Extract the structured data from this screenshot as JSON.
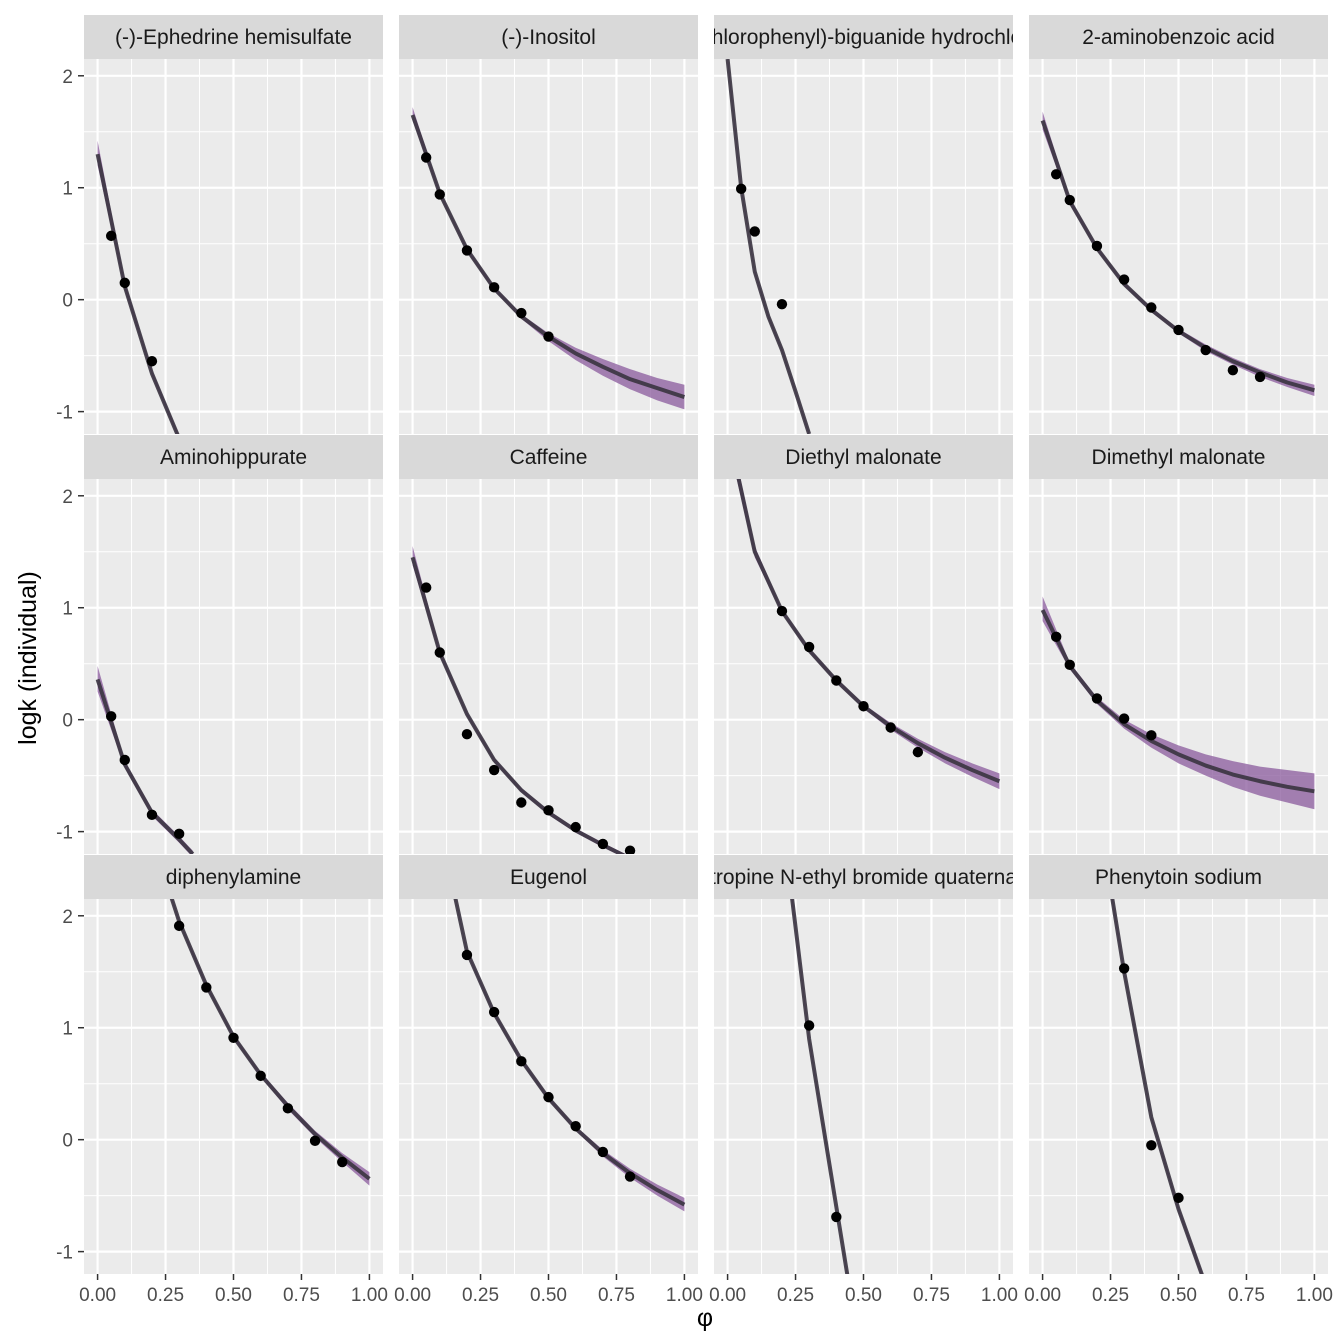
{
  "chart_data": {
    "type": "line",
    "xlabel": "φ",
    "ylabel": "logk (individual)",
    "xlim": [
      -0.05,
      1.05
    ],
    "ylim": [
      -1.2,
      2.15
    ],
    "x_ticks": [
      0.0,
      0.25,
      0.5,
      0.75,
      1.0
    ],
    "x_tick_labels": [
      "0.00",
      "0.25",
      "0.50",
      "0.75",
      "1.00"
    ],
    "y_ticks": [
      -1,
      0,
      1,
      2
    ],
    "y_tick_labels": [
      "-1",
      "0",
      "1",
      "2"
    ],
    "grid": true,
    "layout": {
      "rows": 3,
      "cols": 4
    },
    "colors": {
      "panel_bg": "#ebebeb",
      "grid": "#ffffff",
      "strip_bg": "#d9d9d9",
      "band": "#8a5a9c",
      "line": "#3a3440",
      "points": "#000000"
    },
    "panels": [
      {
        "title": "(-)-Ephedrine hemisulfate",
        "curve": {
          "x": [
            0,
            0.1,
            0.2,
            0.3
          ],
          "y": [
            1.3,
            0.12,
            -0.66,
            -1.24
          ]
        },
        "band": {
          "x": [
            0,
            0.1,
            0.2,
            0.3
          ],
          "lower": [
            1.2,
            0.09,
            -0.68,
            -1.26
          ],
          "upper": [
            1.42,
            0.16,
            -0.63,
            -1.21
          ]
        },
        "points": {
          "x": [
            0.05,
            0.1,
            0.2
          ],
          "y": [
            0.57,
            0.15,
            -0.55
          ]
        }
      },
      {
        "title": "(-)-Inositol",
        "curve": {
          "x": [
            0,
            0.1,
            0.2,
            0.3,
            0.4,
            0.5,
            0.6,
            0.7,
            0.8,
            0.9,
            1.0
          ],
          "y": [
            1.65,
            0.95,
            0.45,
            0.1,
            -0.15,
            -0.33,
            -0.48,
            -0.6,
            -0.71,
            -0.79,
            -0.87
          ]
        },
        "band": {
          "x": [
            0,
            0.1,
            0.2,
            0.3,
            0.4,
            0.5,
            0.6,
            0.7,
            0.8,
            0.9,
            1.0
          ],
          "lower": [
            1.6,
            0.93,
            0.43,
            0.08,
            -0.17,
            -0.37,
            -0.54,
            -0.68,
            -0.8,
            -0.9,
            -0.98
          ],
          "upper": [
            1.72,
            0.97,
            0.47,
            0.12,
            -0.13,
            -0.3,
            -0.43,
            -0.53,
            -0.62,
            -0.7,
            -0.76
          ]
        },
        "points": {
          "x": [
            0.05,
            0.1,
            0.2,
            0.3,
            0.4,
            0.5
          ],
          "y": [
            1.27,
            0.94,
            0.44,
            0.11,
            -0.12,
            -0.33
          ]
        }
      },
      {
        "title": "(m-chlorophenyl)-biguanide hydrochloride",
        "curve": {
          "x": [
            0.0,
            0.05,
            0.1,
            0.15,
            0.2,
            0.25,
            0.3
          ],
          "y": [
            2.15,
            1.0,
            0.25,
            -0.15,
            -0.45,
            -0.82,
            -1.2
          ]
        },
        "band": {
          "x": [
            0.0,
            0.05,
            0.1,
            0.15,
            0.2,
            0.25,
            0.3
          ],
          "lower": [
            2.1,
            0.98,
            0.23,
            -0.17,
            -0.47,
            -0.84,
            -1.22
          ],
          "upper": [
            2.2,
            1.02,
            0.27,
            -0.13,
            -0.43,
            -0.8,
            -1.18
          ]
        },
        "points": {
          "x": [
            0.05,
            0.1,
            0.2
          ],
          "y": [
            0.99,
            0.61,
            -0.04
          ]
        }
      },
      {
        "title": "2-aminobenzoic acid",
        "curve": {
          "x": [
            0,
            0.1,
            0.2,
            0.3,
            0.4,
            0.5,
            0.6,
            0.7,
            0.8,
            0.9,
            1.0
          ],
          "y": [
            1.6,
            0.88,
            0.46,
            0.14,
            -0.09,
            -0.28,
            -0.43,
            -0.55,
            -0.65,
            -0.74,
            -0.81
          ]
        },
        "band": {
          "x": [
            0,
            0.1,
            0.2,
            0.3,
            0.4,
            0.5,
            0.6,
            0.7,
            0.8,
            0.9,
            1.0
          ],
          "lower": [
            1.52,
            0.85,
            0.44,
            0.12,
            -0.11,
            -0.3,
            -0.46,
            -0.58,
            -0.69,
            -0.78,
            -0.86
          ],
          "upper": [
            1.68,
            0.91,
            0.48,
            0.16,
            -0.07,
            -0.26,
            -0.4,
            -0.52,
            -0.62,
            -0.7,
            -0.76
          ]
        },
        "points": {
          "x": [
            0.05,
            0.1,
            0.2,
            0.3,
            0.4,
            0.5,
            0.6,
            0.7,
            0.8
          ],
          "y": [
            1.12,
            0.89,
            0.48,
            0.18,
            -0.07,
            -0.27,
            -0.45,
            -0.63,
            -0.69
          ]
        }
      },
      {
        "title": "Aminohippurate",
        "curve": {
          "x": [
            0,
            0.1,
            0.2,
            0.3,
            0.35
          ],
          "y": [
            0.36,
            -0.4,
            -0.83,
            -1.07,
            -1.2
          ]
        },
        "band": {
          "x": [
            0,
            0.1,
            0.2,
            0.3,
            0.35
          ],
          "lower": [
            0.25,
            -0.43,
            -0.86,
            -1.1,
            -1.23
          ],
          "upper": [
            0.48,
            -0.37,
            -0.8,
            -1.04,
            -1.17
          ]
        },
        "points": {
          "x": [
            0.05,
            0.1,
            0.2,
            0.3
          ],
          "y": [
            0.03,
            -0.36,
            -0.85,
            -1.02
          ]
        }
      },
      {
        "title": "Caffeine",
        "curve": {
          "x": [
            0,
            0.1,
            0.2,
            0.3,
            0.4,
            0.5,
            0.6,
            0.7,
            0.8
          ],
          "y": [
            1.45,
            0.6,
            0.05,
            -0.36,
            -0.63,
            -0.83,
            -0.99,
            -1.12,
            -1.24
          ]
        },
        "band": {
          "x": [
            0,
            0.1,
            0.2,
            0.3,
            0.4,
            0.5,
            0.6,
            0.7,
            0.8
          ],
          "lower": [
            1.38,
            0.57,
            0.03,
            -0.38,
            -0.65,
            -0.85,
            -1.01,
            -1.14,
            -1.26
          ],
          "upper": [
            1.55,
            0.63,
            0.07,
            -0.34,
            -0.61,
            -0.81,
            -0.97,
            -1.1,
            -1.22
          ]
        },
        "points": {
          "x": [
            0.05,
            0.1,
            0.2,
            0.3,
            0.4,
            0.5,
            0.6,
            0.7,
            0.8
          ],
          "y": [
            1.18,
            0.6,
            -0.13,
            -0.45,
            -0.74,
            -0.81,
            -0.96,
            -1.11,
            -1.17
          ]
        }
      },
      {
        "title": "Diethyl malonate",
        "curve": {
          "x": [
            0.0,
            0.1,
            0.2,
            0.3,
            0.4,
            0.5,
            0.6,
            0.7,
            0.8,
            0.9,
            1.0
          ],
          "y": [
            2.6,
            1.5,
            0.97,
            0.62,
            0.35,
            0.12,
            -0.06,
            -0.21,
            -0.34,
            -0.45,
            -0.55
          ]
        },
        "band": {
          "x": [
            0.0,
            0.1,
            0.2,
            0.3,
            0.4,
            0.5,
            0.6,
            0.7,
            0.8,
            0.9,
            1.0
          ],
          "lower": [
            2.5,
            1.45,
            0.95,
            0.6,
            0.33,
            0.1,
            -0.09,
            -0.25,
            -0.39,
            -0.51,
            -0.62
          ],
          "upper": [
            2.7,
            1.55,
            0.99,
            0.64,
            0.37,
            0.14,
            -0.03,
            -0.17,
            -0.29,
            -0.39,
            -0.48
          ]
        },
        "points": {
          "x": [
            0.2,
            0.3,
            0.4,
            0.5,
            0.6,
            0.7
          ],
          "y": [
            0.97,
            0.65,
            0.35,
            0.12,
            -0.07,
            -0.29
          ]
        }
      },
      {
        "title": "Dimethyl malonate",
        "curve": {
          "x": [
            0,
            0.1,
            0.2,
            0.3,
            0.4,
            0.5,
            0.6,
            0.7,
            0.8,
            0.9,
            1.0
          ],
          "y": [
            0.98,
            0.48,
            0.17,
            -0.04,
            -0.19,
            -0.31,
            -0.41,
            -0.49,
            -0.55,
            -0.6,
            -0.64
          ]
        },
        "band": {
          "x": [
            0,
            0.1,
            0.2,
            0.3,
            0.4,
            0.5,
            0.6,
            0.7,
            0.8,
            0.9,
            1.0
          ],
          "lower": [
            0.88,
            0.45,
            0.14,
            -0.08,
            -0.25,
            -0.39,
            -0.5,
            -0.6,
            -0.68,
            -0.74,
            -0.8
          ],
          "upper": [
            1.1,
            0.51,
            0.2,
            0.0,
            -0.13,
            -0.23,
            -0.31,
            -0.37,
            -0.42,
            -0.45,
            -0.48
          ]
        },
        "points": {
          "x": [
            0.05,
            0.1,
            0.2,
            0.3,
            0.4
          ],
          "y": [
            0.74,
            0.49,
            0.19,
            0.01,
            -0.14
          ]
        }
      },
      {
        "title": "diphenylamine",
        "curve": {
          "x": [
            0.2,
            0.3,
            0.4,
            0.5,
            0.6,
            0.7,
            0.8,
            0.9,
            1.0
          ],
          "y": [
            2.7,
            1.95,
            1.38,
            0.92,
            0.58,
            0.3,
            0.05,
            -0.16,
            -0.35
          ]
        },
        "band": {
          "x": [
            0.2,
            0.3,
            0.4,
            0.5,
            0.6,
            0.7,
            0.8,
            0.9,
            1.0
          ],
          "lower": [
            2.68,
            1.93,
            1.36,
            0.9,
            0.56,
            0.27,
            0.02,
            -0.2,
            -0.41
          ]
        },
        "points": {
          "x": [
            0.3,
            0.4,
            0.5,
            0.6,
            0.7,
            0.8,
            0.9
          ],
          "y": [
            1.91,
            1.36,
            0.91,
            0.57,
            0.28,
            -0.01,
            -0.2
          ]
        }
      },
      {
        "title": "Eugenol",
        "curve": {
          "x": [
            0.1,
            0.2,
            0.3,
            0.4,
            0.5,
            0.6,
            0.7,
            0.8,
            0.9,
            1.0
          ],
          "y": [
            2.8,
            1.68,
            1.13,
            0.71,
            0.37,
            0.1,
            -0.12,
            -0.3,
            -0.45,
            -0.58
          ]
        },
        "band": {
          "x": [
            0.1,
            0.2,
            0.3,
            0.4,
            0.5,
            0.6,
            0.7,
            0.8,
            0.9,
            1.0
          ],
          "lower": [
            2.78,
            1.66,
            1.11,
            0.69,
            0.35,
            0.08,
            -0.15,
            -0.34,
            -0.5,
            -0.64
          ],
          "upper": [
            2.82,
            1.7,
            1.15,
            0.73,
            0.39,
            0.12,
            -0.09,
            -0.26,
            -0.4,
            -0.52
          ]
        },
        "points": {
          "x": [
            0.2,
            0.3,
            0.4,
            0.5,
            0.6,
            0.7,
            0.8
          ],
          "y": [
            1.65,
            1.14,
            0.7,
            0.38,
            0.12,
            -0.11,
            -0.33
          ]
        }
      },
      {
        "title": "Homatropine N-ethyl bromide quaternary salt",
        "curve": {
          "x": [
            0.2,
            0.3,
            0.4,
            0.45
          ],
          "y": [
            2.9,
            0.9,
            -0.6,
            -1.35
          ]
        },
        "band": {
          "x": [
            0.2,
            0.3,
            0.4,
            0.45
          ],
          "lower": [
            2.85,
            0.87,
            -0.62,
            -1.38
          ],
          "upper": [
            2.95,
            0.93,
            -0.58,
            -1.32
          ]
        },
        "points": {
          "x": [
            0.3,
            0.4
          ],
          "y": [
            1.02,
            -0.69
          ]
        }
      },
      {
        "title": "Phenytoin sodium",
        "curve": {
          "x": [
            0.2,
            0.3,
            0.4,
            0.5,
            0.6
          ],
          "y": [
            3.0,
            1.5,
            0.2,
            -0.62,
            -1.3
          ]
        },
        "band": {
          "x": [
            0.2,
            0.3,
            0.4,
            0.5,
            0.6
          ],
          "lower": [
            2.95,
            1.47,
            0.18,
            -0.65,
            -1.33
          ],
          "upper": [
            3.05,
            1.53,
            0.22,
            -0.59,
            -1.27
          ]
        },
        "points": {
          "x": [
            0.3,
            0.4,
            0.5
          ],
          "y": [
            1.53,
            -0.05,
            -0.52
          ]
        }
      }
    ]
  }
}
